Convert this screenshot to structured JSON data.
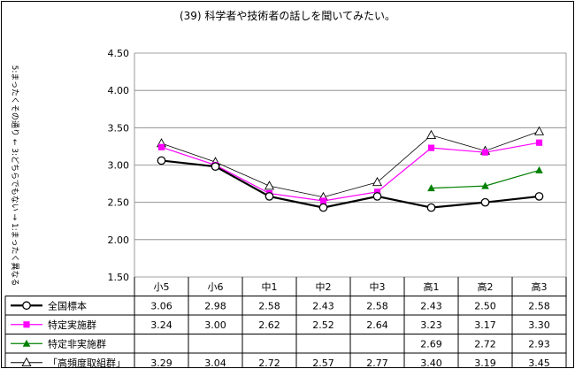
{
  "chart_data": {
    "type": "line",
    "title": "(39) 科学者や技術者の話しを聞いてみたい。",
    "ylabel": "5:まったくその通り ← 3:どちらでもない → 1:まったく異なる",
    "xlabel": "",
    "ylim": [
      1.5,
      4.5
    ],
    "yticks": [
      "1.50",
      "2.00",
      "2.50",
      "3.00",
      "3.50",
      "4.00",
      "4.50"
    ],
    "grid": true,
    "legend_placement": "data-table",
    "categories": [
      "小5",
      "小6",
      "中1",
      "中2",
      "中3",
      "高1",
      "高2",
      "高3"
    ],
    "series": [
      {
        "name": "全国標本",
        "values": [
          3.06,
          2.98,
          2.58,
          2.43,
          2.58,
          2.43,
          2.5,
          2.58
        ],
        "labels": [
          "3.06",
          "2.98",
          "2.58",
          "2.43",
          "2.58",
          "2.43",
          "2.50",
          "2.58"
        ],
        "color": "#000000",
        "marker": "open-circle",
        "line_width": 2.2
      },
      {
        "name": "特定実施群",
        "values": [
          3.24,
          3.0,
          2.62,
          2.52,
          2.64,
          3.23,
          3.17,
          3.3
        ],
        "labels": [
          "3.24",
          "3.00",
          "2.62",
          "2.52",
          "2.64",
          "3.23",
          "3.17",
          "3.30"
        ],
        "color": "#ff00ff",
        "marker": "filled-square",
        "line_width": 1.2
      },
      {
        "name": "特定非実施群",
        "values": [
          null,
          null,
          null,
          null,
          null,
          2.69,
          2.72,
          2.93
        ],
        "labels": [
          "",
          "",
          "",
          "",
          "",
          "2.69",
          "2.72",
          "2.93"
        ],
        "color": "#008000",
        "marker": "filled-triangle",
        "line_width": 1.2
      },
      {
        "name": "「高頻度取組群」",
        "values": [
          3.29,
          3.04,
          2.72,
          2.57,
          2.77,
          3.4,
          3.19,
          3.45
        ],
        "labels": [
          "3.29",
          "3.04",
          "2.72",
          "2.57",
          "2.77",
          "3.40",
          "3.19",
          "3.45"
        ],
        "color": "#000000",
        "marker": "open-triangle",
        "line_width": 0.8
      }
    ]
  }
}
